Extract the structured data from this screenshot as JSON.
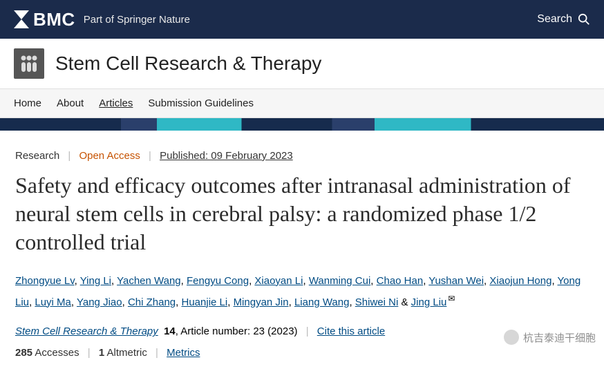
{
  "topbar": {
    "brand": "BMC",
    "tagline": "Part of Springer Nature",
    "search_label": "Search"
  },
  "journal": {
    "title": "Stem Cell Research & Therapy"
  },
  "nav": {
    "items": [
      "Home",
      "About",
      "Articles",
      "Submission Guidelines"
    ],
    "active_index": 2
  },
  "article": {
    "type": "Research",
    "open_access": "Open Access",
    "published": "Published: 09 February 2023",
    "title": "Safety and efficacy outcomes after intranasal administration of neural stem cells in cerebral palsy: a randomized phase 1/2 controlled trial",
    "authors": [
      "Zhongyue Lv",
      "Ying Li",
      "Yachen Wang",
      "Fengyu Cong",
      "Xiaoyan Li",
      "Wanming Cui",
      "Chao Han",
      "Yushan Wei",
      "Xiaojun Hong",
      "Yong Liu",
      "Luyi Ma",
      "Yang Jiao",
      "Chi Zhang",
      "Huanjie Li",
      "Mingyan Jin",
      "Liang Wang",
      "Shiwei Ni",
      "Jing Liu"
    ],
    "corresponding_last": true,
    "journal_name": "Stem Cell Research & Therapy",
    "volume": "14",
    "article_info": ", Article number: 23 (2023)",
    "cite": "Cite this article",
    "accesses": "285",
    "accesses_label": "Accesses",
    "altmetric": "1",
    "altmetric_label": "Altmetric",
    "metrics": "Metrics"
  },
  "watermark": "杭吉泰迪干细胞"
}
